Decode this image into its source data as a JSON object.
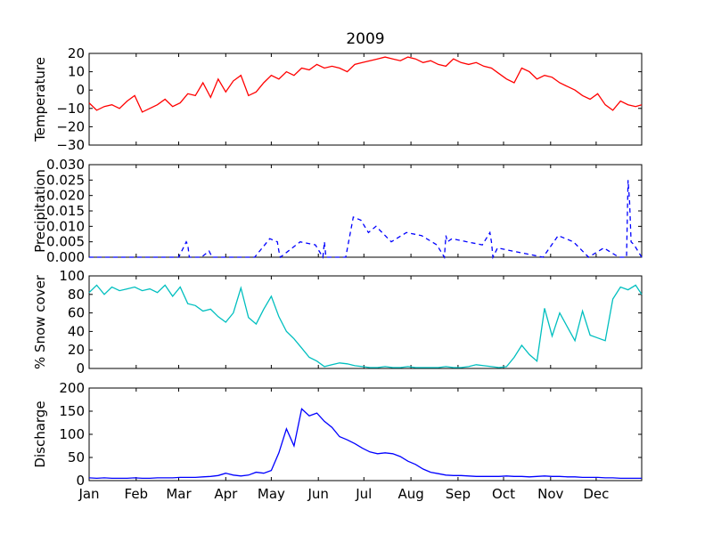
{
  "title": "2009",
  "x_ticks": [
    "Jan",
    "Feb",
    "Mar",
    "Apr",
    "May",
    "Jun",
    "Jul",
    "Aug",
    "Sep",
    "Oct",
    "Nov",
    "Dec"
  ],
  "chart_data": [
    {
      "type": "line",
      "ylabel": "Temperature",
      "ylim": [
        -30,
        20
      ],
      "yticks": [
        "20",
        "10",
        "0",
        "−10",
        "−20",
        "−30"
      ],
      "color": "#ff0000",
      "x": [
        1,
        6,
        11,
        16,
        21,
        26,
        31,
        36,
        41,
        46,
        51,
        56,
        61,
        66,
        71,
        76,
        81,
        86,
        91,
        96,
        101,
        106,
        111,
        116,
        121,
        126,
        131,
        136,
        141,
        146,
        151,
        156,
        161,
        166,
        171,
        176,
        181,
        186,
        191,
        196,
        201,
        206,
        211,
        216,
        221,
        226,
        231,
        236,
        241,
        246,
        251,
        256,
        261,
        266,
        271,
        276,
        281,
        286,
        291,
        296,
        301,
        306,
        311,
        316,
        321,
        326,
        331,
        336,
        341,
        346,
        351,
        356,
        361,
        365
      ],
      "values": [
        -7,
        -11,
        -9,
        -8,
        -10,
        -6,
        -3,
        -12,
        -10,
        -8,
        -5,
        -9,
        -7,
        -2,
        -3,
        4,
        -4,
        6,
        -1,
        5,
        8,
        -3,
        -1,
        4,
        8,
        6,
        10,
        8,
        12,
        11,
        14,
        12,
        13,
        12,
        10,
        14,
        15,
        16,
        17,
        18,
        17,
        16,
        18,
        17,
        15,
        16,
        14,
        13,
        17,
        15,
        14,
        15,
        13,
        12,
        9,
        6,
        4,
        12,
        10,
        6,
        8,
        7,
        4,
        2,
        0,
        -3,
        -5,
        -2,
        -8,
        -11,
        -6,
        -8,
        -9,
        -8
      ]
    },
    {
      "type": "line",
      "ylabel": "Precipitation",
      "ylim": [
        0,
        0.03
      ],
      "yticks": [
        "0.030",
        "0.025",
        "0.020",
        "0.015",
        "0.010",
        "0.005",
        "0.000"
      ],
      "color": "#0000ff",
      "linestyle": "dashed",
      "x": [
        1,
        10,
        20,
        30,
        40,
        50,
        60,
        65,
        66,
        67,
        75,
        80,
        81,
        82,
        90,
        100,
        110,
        120,
        125,
        126,
        127,
        140,
        150,
        155,
        156,
        157,
        170,
        175,
        180,
        185,
        190,
        200,
        210,
        220,
        230,
        235,
        236,
        237,
        240,
        250,
        260,
        265,
        266,
        267,
        270,
        280,
        290,
        300,
        310,
        320,
        330,
        340,
        350,
        355,
        356,
        357,
        358,
        360,
        365
      ],
      "values": [
        0,
        0,
        0,
        0,
        0,
        0,
        0,
        0.005,
        0.004,
        0,
        0,
        0.002,
        0.001,
        0,
        0,
        0,
        0,
        0.006,
        0.005,
        0.002,
        0,
        0.005,
        0.004,
        0,
        0.005,
        0,
        0,
        0.013,
        0.012,
        0.008,
        0.01,
        0.005,
        0.008,
        0.007,
        0.004,
        0,
        0.007,
        0.005,
        0.006,
        0.005,
        0.004,
        0.008,
        0.005,
        0,
        0.003,
        0.002,
        0.001,
        0,
        0.007,
        0.005,
        0,
        0.003,
        0,
        0,
        0.025,
        0.018,
        0.005,
        0.004,
        0
      ]
    },
    {
      "type": "line",
      "ylabel": "% Snow cover",
      "ylim": [
        0,
        100
      ],
      "yticks": [
        "100",
        "80",
        "60",
        "40",
        "20",
        "0"
      ],
      "color": "#00bfbf",
      "x": [
        1,
        6,
        11,
        16,
        21,
        26,
        31,
        36,
        41,
        46,
        51,
        56,
        61,
        66,
        71,
        76,
        81,
        86,
        91,
        96,
        101,
        106,
        111,
        116,
        121,
        126,
        131,
        136,
        141,
        146,
        151,
        156,
        161,
        166,
        171,
        176,
        181,
        186,
        191,
        196,
        201,
        206,
        211,
        216,
        221,
        226,
        231,
        236,
        241,
        246,
        251,
        256,
        261,
        266,
        271,
        276,
        281,
        286,
        291,
        296,
        301,
        306,
        311,
        316,
        321,
        326,
        331,
        336,
        341,
        346,
        351,
        356,
        361,
        365
      ],
      "values": [
        82,
        90,
        80,
        88,
        84,
        86,
        88,
        84,
        86,
        82,
        90,
        78,
        88,
        70,
        68,
        62,
        64,
        56,
        50,
        60,
        87,
        55,
        48,
        64,
        78,
        56,
        40,
        32,
        22,
        12,
        8,
        2,
        4,
        6,
        5,
        3,
        2,
        1,
        1,
        2,
        1,
        1,
        2,
        1,
        1,
        1,
        1,
        2,
        1,
        1,
        2,
        4,
        3,
        2,
        1,
        2,
        12,
        25,
        15,
        8,
        65,
        35,
        60,
        45,
        30,
        62,
        36,
        33,
        30,
        75,
        88,
        85,
        90,
        80
      ]
    },
    {
      "type": "line",
      "ylabel": "Discharge",
      "ylim": [
        0,
        200
      ],
      "yticks": [
        "200",
        "150",
        "100",
        "50",
        "0"
      ],
      "color": "#0000ff",
      "x": [
        1,
        6,
        11,
        16,
        21,
        26,
        31,
        36,
        41,
        46,
        51,
        56,
        61,
        66,
        71,
        76,
        81,
        86,
        91,
        96,
        101,
        106,
        111,
        116,
        121,
        126,
        131,
        136,
        141,
        146,
        151,
        156,
        161,
        166,
        171,
        176,
        181,
        186,
        191,
        196,
        201,
        206,
        211,
        216,
        221,
        226,
        231,
        236,
        241,
        246,
        251,
        256,
        261,
        266,
        271,
        276,
        281,
        286,
        291,
        296,
        301,
        306,
        311,
        316,
        321,
        326,
        331,
        336,
        341,
        346,
        351,
        356,
        361,
        365
      ],
      "values": [
        6,
        5,
        6,
        5,
        5,
        5,
        6,
        5,
        5,
        6,
        6,
        6,
        7,
        7,
        7,
        8,
        9,
        11,
        16,
        12,
        10,
        12,
        18,
        16,
        22,
        60,
        112,
        75,
        155,
        140,
        146,
        128,
        115,
        95,
        88,
        80,
        70,
        62,
        58,
        60,
        58,
        52,
        42,
        35,
        25,
        18,
        15,
        12,
        11,
        11,
        10,
        9,
        9,
        9,
        9,
        10,
        9,
        9,
        8,
        9,
        10,
        9,
        9,
        8,
        8,
        7,
        7,
        7,
        6,
        6,
        5,
        5,
        5,
        5
      ]
    }
  ]
}
